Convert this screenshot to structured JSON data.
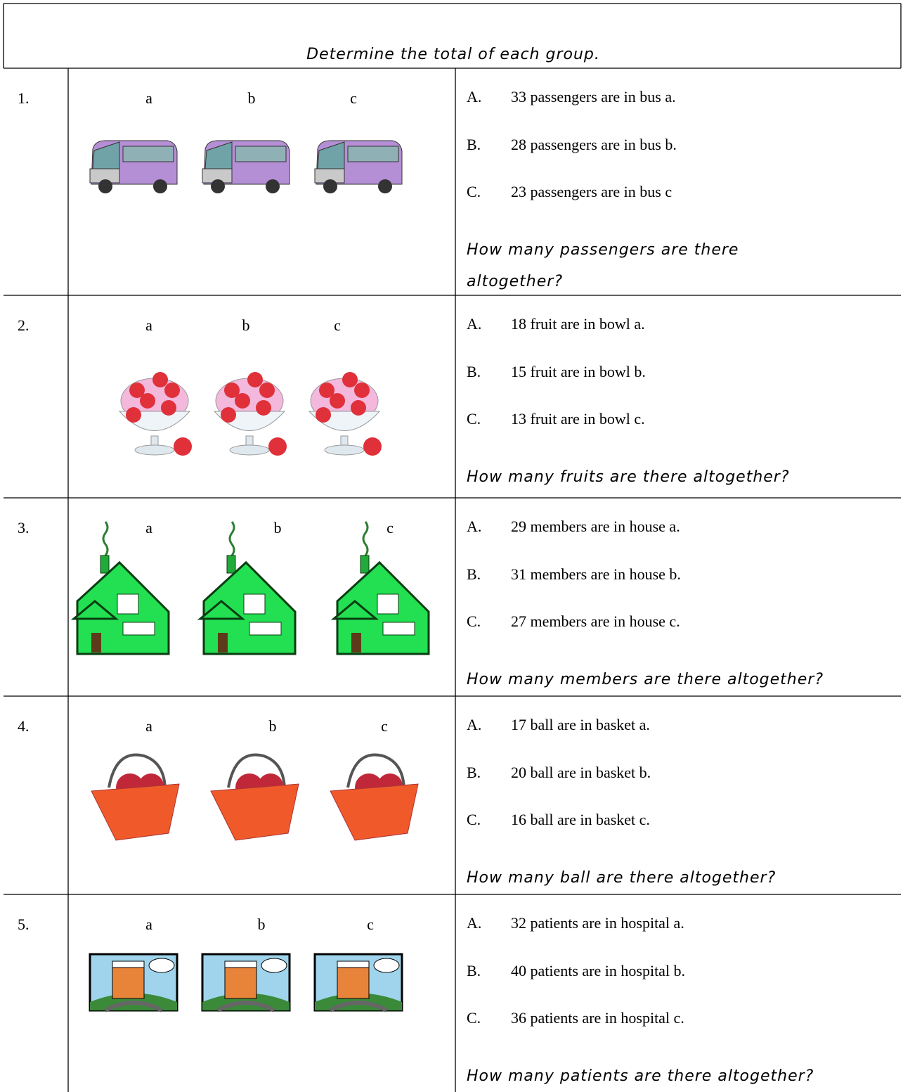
{
  "title": "Determine the total of each group.",
  "rows": [
    {
      "number": "1.",
      "labels": [
        "a",
        "b",
        "c"
      ],
      "items": [
        {
          "letter": "A.",
          "text": "33 passengers are in bus a."
        },
        {
          "letter": "B.",
          "text": "28 passengers are in bus b."
        },
        {
          "letter": "C.",
          "text": "23 passengers are in bus c"
        }
      ],
      "question": [
        "How many passengers are there",
        "altogether?"
      ]
    },
    {
      "number": "2.",
      "labels": [
        "a",
        "b",
        "c"
      ],
      "items": [
        {
          "letter": "A.",
          "text": "18 fruit are in bowl a."
        },
        {
          "letter": "B.",
          "text": "15 fruit are in bowl b."
        },
        {
          "letter": "C.",
          "text": "13 fruit are in bowl c."
        }
      ],
      "question": [
        "How many fruits are there altogether?"
      ]
    },
    {
      "number": "3.",
      "labels": [
        "a",
        "b",
        "c"
      ],
      "items": [
        {
          "letter": "A.",
          "text": "29 members are in house a."
        },
        {
          "letter": "B.",
          "text": "31 members are in house b."
        },
        {
          "letter": "C.",
          "text": "27 members are in house c."
        }
      ],
      "question": [
        "How many members are there altogether?"
      ]
    },
    {
      "number": "4.",
      "labels": [
        "a",
        "b",
        "c"
      ],
      "items": [
        {
          "letter": "A.",
          "text": "17 ball are in basket a."
        },
        {
          "letter": "B.",
          "text": "20 ball are in basket b."
        },
        {
          "letter": "C.",
          "text": "16 ball are in basket c."
        }
      ],
      "question": [
        "How many ball are there altogether?"
      ]
    },
    {
      "number": "5.",
      "labels": [
        "a",
        "b",
        "c"
      ],
      "items": [
        {
          "letter": "A.",
          "text": "32 patients are in hospital a."
        },
        {
          "letter": "B.",
          "text": "40 patients are in hospital b."
        },
        {
          "letter": "C.",
          "text": "36 patients are in hospital c."
        }
      ],
      "question": [
        "How many patients are there altogether?"
      ]
    }
  ]
}
